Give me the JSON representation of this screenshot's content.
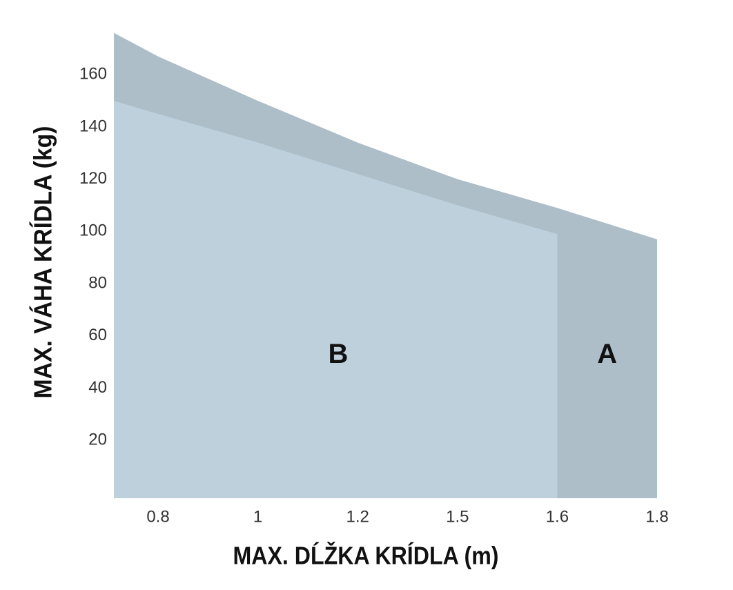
{
  "chart_data": {
    "type": "area",
    "x_label": "MAX. DĹŽKA KRÍDLA (m)",
    "y_label": "MAX. VÁHA KRÍDLA (kg)",
    "categories": [
      null,
      "0.8",
      "1",
      "1.2",
      "1.5",
      "1.6",
      "1.8"
    ],
    "series": [
      {
        "name": "A",
        "color": "#adbec8",
        "values": [
          176,
          167,
          150,
          134,
          120,
          109,
          97
        ]
      },
      {
        "name": "B",
        "color": "#bdd0dc",
        "values": [
          150,
          145,
          134,
          122,
          110,
          99,
          null
        ]
      }
    ],
    "ylim": [
      0,
      180
    ],
    "yticks": [
      20,
      40,
      60,
      80,
      100,
      120,
      140,
      160
    ]
  }
}
